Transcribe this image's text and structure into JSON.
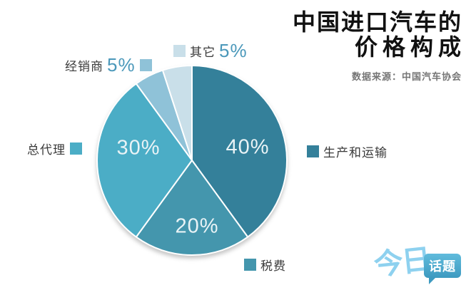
{
  "title": {
    "line1": "中国进口汽车的",
    "line2": "价格构成",
    "source": "数据来源：中国汽车协会"
  },
  "chart_data": {
    "type": "pie",
    "title": "中国进口汽车的价格构成",
    "source_note": "数据来源：中国汽车协会",
    "unit": "percent",
    "start_angle_deg": 0,
    "direction": "clockwise",
    "legend_position": "around",
    "slices": [
      {
        "id": "production-transport",
        "label": "生产和运输",
        "value": 40,
        "pct_label": "40%",
        "color": "#34809a",
        "value_label_inside": true
      },
      {
        "id": "tax",
        "label": "税费",
        "value": 20,
        "pct_label": "20%",
        "color": "#4496ad",
        "value_label_inside": true
      },
      {
        "id": "general-agent",
        "label": "总代理",
        "value": 30,
        "pct_label": "30%",
        "color": "#4badc6",
        "value_label_inside": true
      },
      {
        "id": "dealer",
        "label": "经销商",
        "value": 5,
        "pct_label": "5%",
        "color": "#8fc2d8",
        "value_label_inside": false
      },
      {
        "id": "other",
        "label": "其它",
        "value": 5,
        "pct_label": "5%",
        "color": "#c9dfe9",
        "value_label_inside": false
      }
    ]
  },
  "logo": {
    "part1": "今日",
    "part2": "话题"
  },
  "colors": {
    "inside_pct_text": "#e9f3f6",
    "legend_pct_text": "#4b98ba",
    "label_text": "#3a3a3a",
    "slice_border": "#ffffff"
  }
}
